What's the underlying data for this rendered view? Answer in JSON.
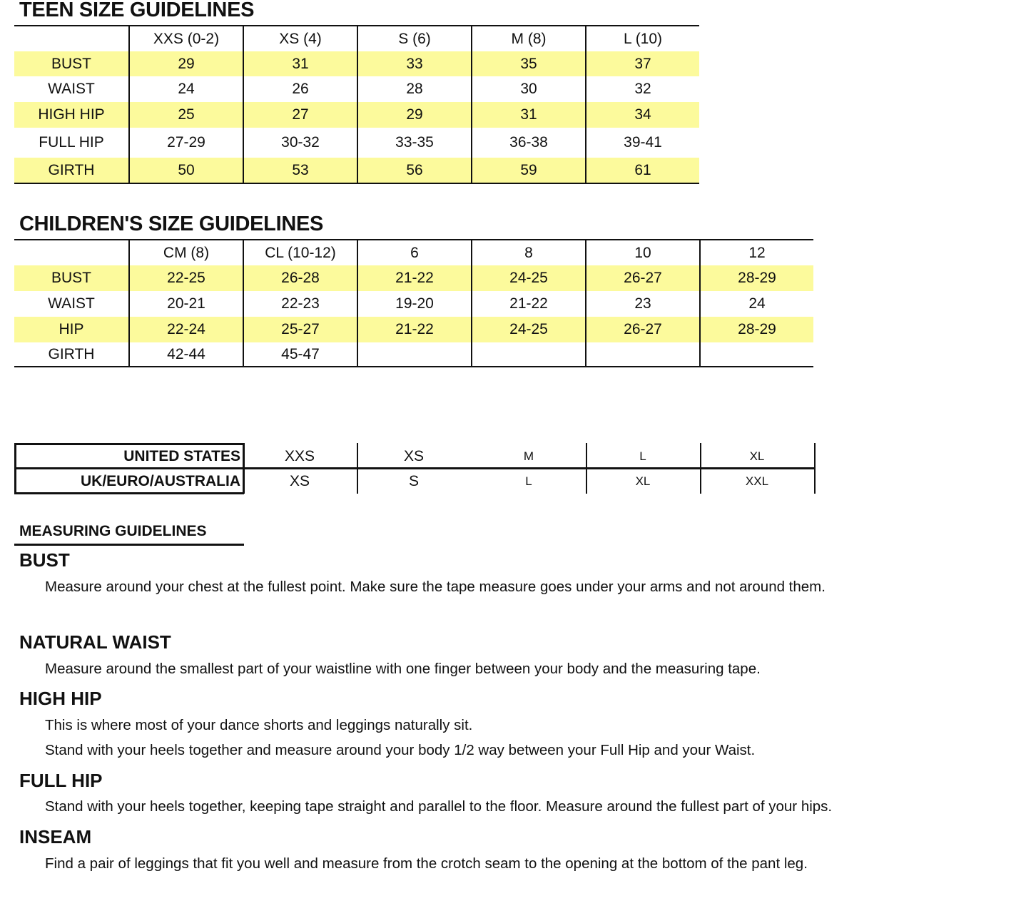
{
  "teen": {
    "title": "TEEN SIZE GUIDELINES",
    "columns": [
      "",
      "XXS (0-2)",
      "XS (4)",
      "S (6)",
      "M (8)",
      "L (10)"
    ],
    "rows": [
      {
        "label": "BUST",
        "values": [
          "29",
          "31",
          "33",
          "35",
          "37"
        ],
        "highlight": true
      },
      {
        "label": "WAIST",
        "values": [
          "24",
          "26",
          "28",
          "30",
          "32"
        ],
        "highlight": false
      },
      {
        "label": "HIGH HIP",
        "values": [
          "25",
          "27",
          "29",
          "31",
          "34"
        ],
        "highlight": true
      },
      {
        "label": "FULL HIP",
        "values": [
          "27-29",
          "30-32",
          "33-35",
          "36-38",
          "39-41"
        ],
        "highlight": false
      },
      {
        "label": "GIRTH",
        "values": [
          "50",
          "53",
          "56",
          "59",
          "61"
        ],
        "highlight": true
      }
    ]
  },
  "children": {
    "title": "CHILDREN'S SIZE GUIDELINES",
    "columns": [
      "",
      "CM (8)",
      "CL (10-12)",
      "6",
      "8",
      "10",
      "12"
    ],
    "rows": [
      {
        "label": "BUST",
        "values": [
          "22-25",
          "26-28",
          "21-22",
          "24-25",
          "26-27",
          "28-29"
        ],
        "highlight": true
      },
      {
        "label": "WAIST",
        "values": [
          "20-21",
          "22-23",
          "19-20",
          "21-22",
          "23",
          "24"
        ],
        "highlight": false
      },
      {
        "label": "HIP",
        "values": [
          "22-24",
          "25-27",
          "21-22",
          "24-25",
          "26-27",
          "28-29"
        ],
        "highlight": true
      },
      {
        "label": "GIRTH",
        "values": [
          "42-44",
          "45-47",
          "",
          "",
          "",
          ""
        ],
        "highlight": false
      }
    ]
  },
  "conversion": {
    "rows": [
      {
        "label": "UNITED STATES",
        "values": [
          "XXS",
          "XS",
          "M",
          "L",
          "XL"
        ]
      },
      {
        "label": "UK/EURO/AUSTRALIA",
        "values": [
          "XS",
          "S",
          "L",
          "XL",
          "XXL"
        ]
      }
    ]
  },
  "measuring": {
    "title": "MEASURING GUIDELINES",
    "sections": [
      {
        "heading": "BUST",
        "lines": [
          "Measure around your chest at the fullest point. Make sure the tape measure goes under your arms and not around them."
        ]
      },
      {
        "heading": "NATURAL WAIST",
        "lines": [
          "Measure around the smallest part of your waistline with one finger between your body and the measuring tape."
        ]
      },
      {
        "heading": "HIGH HIP",
        "lines": [
          "This is where most of your dance shorts and leggings naturally sit.",
          "Stand with your heels together and measure around your body 1/2 way between your Full Hip and your Waist."
        ]
      },
      {
        "heading": "FULL HIP",
        "lines": [
          "Stand with your heels together, keeping tape straight and parallel to the floor. Measure around the fullest part of your hips."
        ]
      },
      {
        "heading": "INSEAM",
        "lines": [
          "Find a pair of leggings that fit you well and measure from the crotch seam to the opening at the bottom of the pant leg."
        ]
      }
    ]
  },
  "colors": {
    "highlight": "#fcfa9c",
    "text": "#111111"
  }
}
